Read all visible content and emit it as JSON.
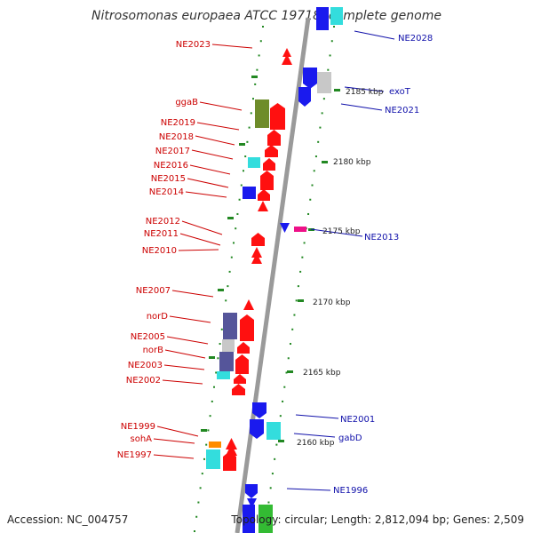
{
  "title": "Nitrosomonas europaea ATCC 19718, complete genome",
  "accession": "Accession: NC_004757",
  "summary": "Topology: circular; Length: 2,812,094 bp; Genes: 2,509",
  "colors": {
    "backbone": "#9a9a9a",
    "left_label": "#cc0000",
    "right_label": "#1010aa",
    "red": "#ff1010",
    "blue": "#1a1aee",
    "cyan": "#33dddd",
    "slate": "#55559a",
    "olive": "#6e8c2a",
    "gray": "#c8c8c8",
    "orange": "#ff8c00",
    "magenta": "#ee1188",
    "green": "#33bb33",
    "tick_dots": "#228822"
  },
  "left_labels": [
    "NE2023",
    "ggaB",
    "NE2019",
    "NE2018",
    "NE2017",
    "NE2016",
    "NE2015",
    "NE2014",
    "NE2012",
    "NE2011",
    "NE2010",
    "NE2007",
    "norD",
    "NE2005",
    "norB",
    "NE2003",
    "NE2002",
    "NE1999",
    "sohA",
    "NE1997"
  ],
  "right_labels": [
    "NE2028",
    "exoT",
    "NE2021",
    "NE2013",
    "NE2001",
    "gabD",
    "NE1996"
  ],
  "kbp_labels": [
    "2185 kbp",
    "2180 kbp",
    "2175 kbp",
    "2170 kbp",
    "2165 kbp",
    "2160 kbp"
  ]
}
